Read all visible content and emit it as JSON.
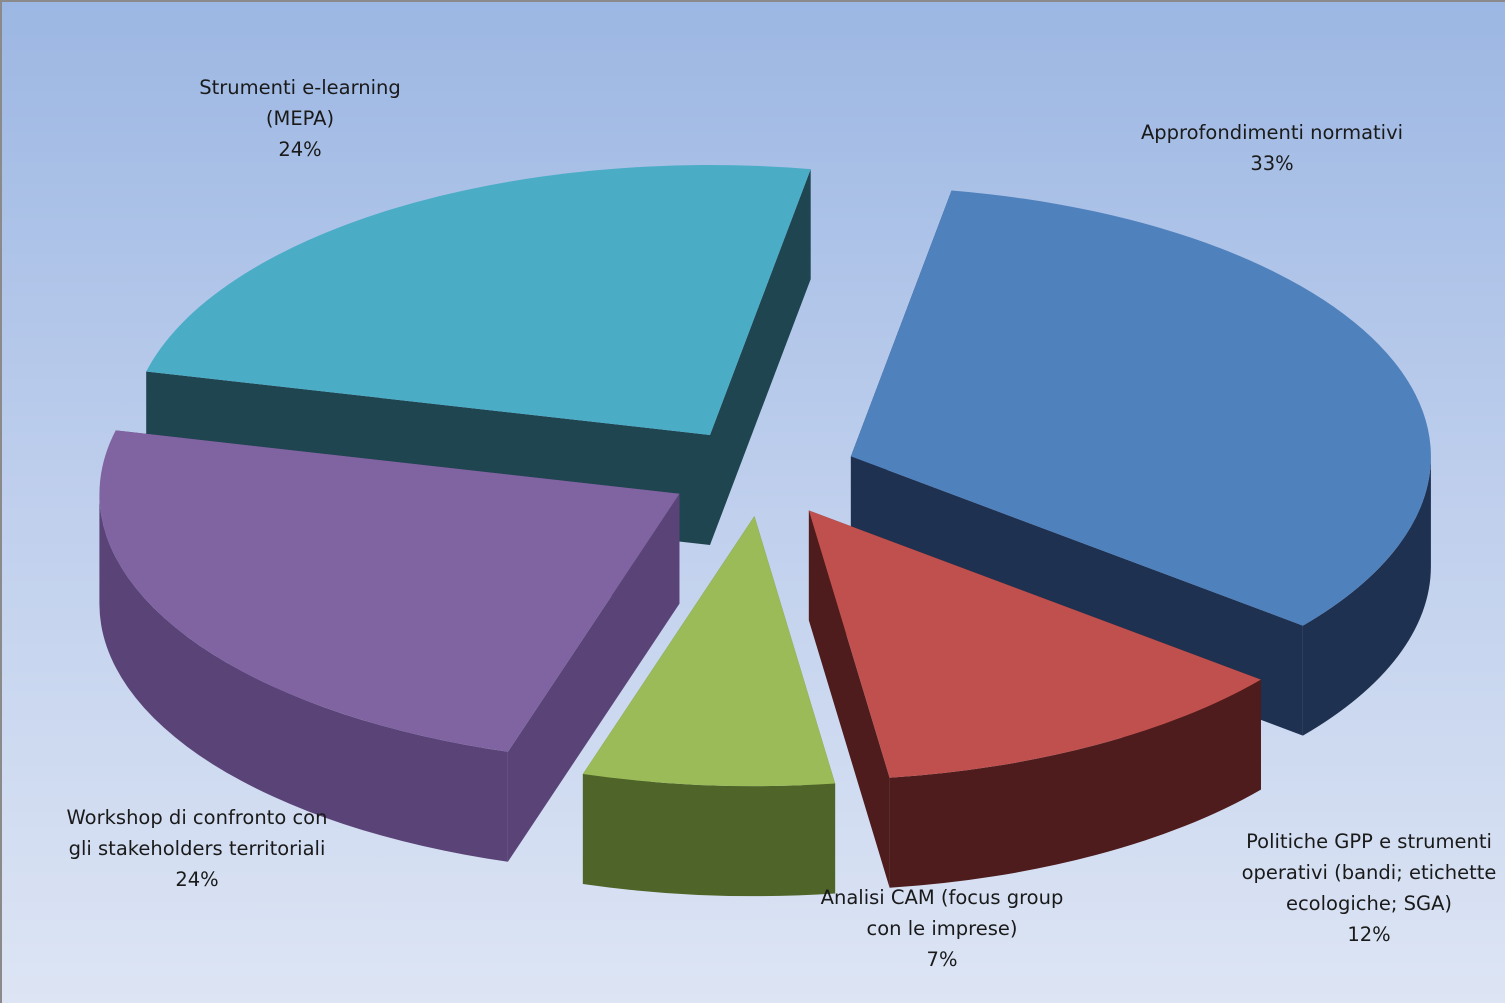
{
  "chart_data": {
    "type": "pie",
    "style": "3d-exploded",
    "slices": [
      {
        "name": "Approfondimenti normativi",
        "value": 33,
        "label_lines": [
          "Approfondimenti normativi"
        ],
        "pct": "33%",
        "top_color": "#4f81bd",
        "side_color": "#1f3150"
      },
      {
        "name": "Politiche GPP e strumenti operativi (bandi; etichette ecologiche; SGA)",
        "value": 12,
        "label_lines": [
          "Politiche GPP e strumenti",
          "operativi (bandi; etichette",
          "ecologiche; SGA)"
        ],
        "pct": "12%",
        "top_color": "#c0504d",
        "side_color": "#4e1c1c"
      },
      {
        "name": "Analisi CAM (focus group con le imprese)",
        "value": 7,
        "label_lines": [
          "Analisi CAM (focus group",
          "con le imprese)"
        ],
        "pct": "7%",
        "top_color": "#9bbb59",
        "side_color": "#4f6428"
      },
      {
        "name": "Workshop di confronto con gli stakeholders territoriali",
        "value": 24,
        "label_lines": [
          "Workshop di confronto con",
          "gli stakeholders territoriali"
        ],
        "pct": "24%",
        "top_color": "#8064a2",
        "side_color": "#5a4477"
      },
      {
        "name": "Strumenti e-learning (MEPA)",
        "value": 24,
        "label_lines": [
          "Strumenti e-learning",
          "(MEPA)"
        ],
        "pct": "24%",
        "top_color": "#4bacc6",
        "side_color": "#1f4550"
      }
    ]
  }
}
